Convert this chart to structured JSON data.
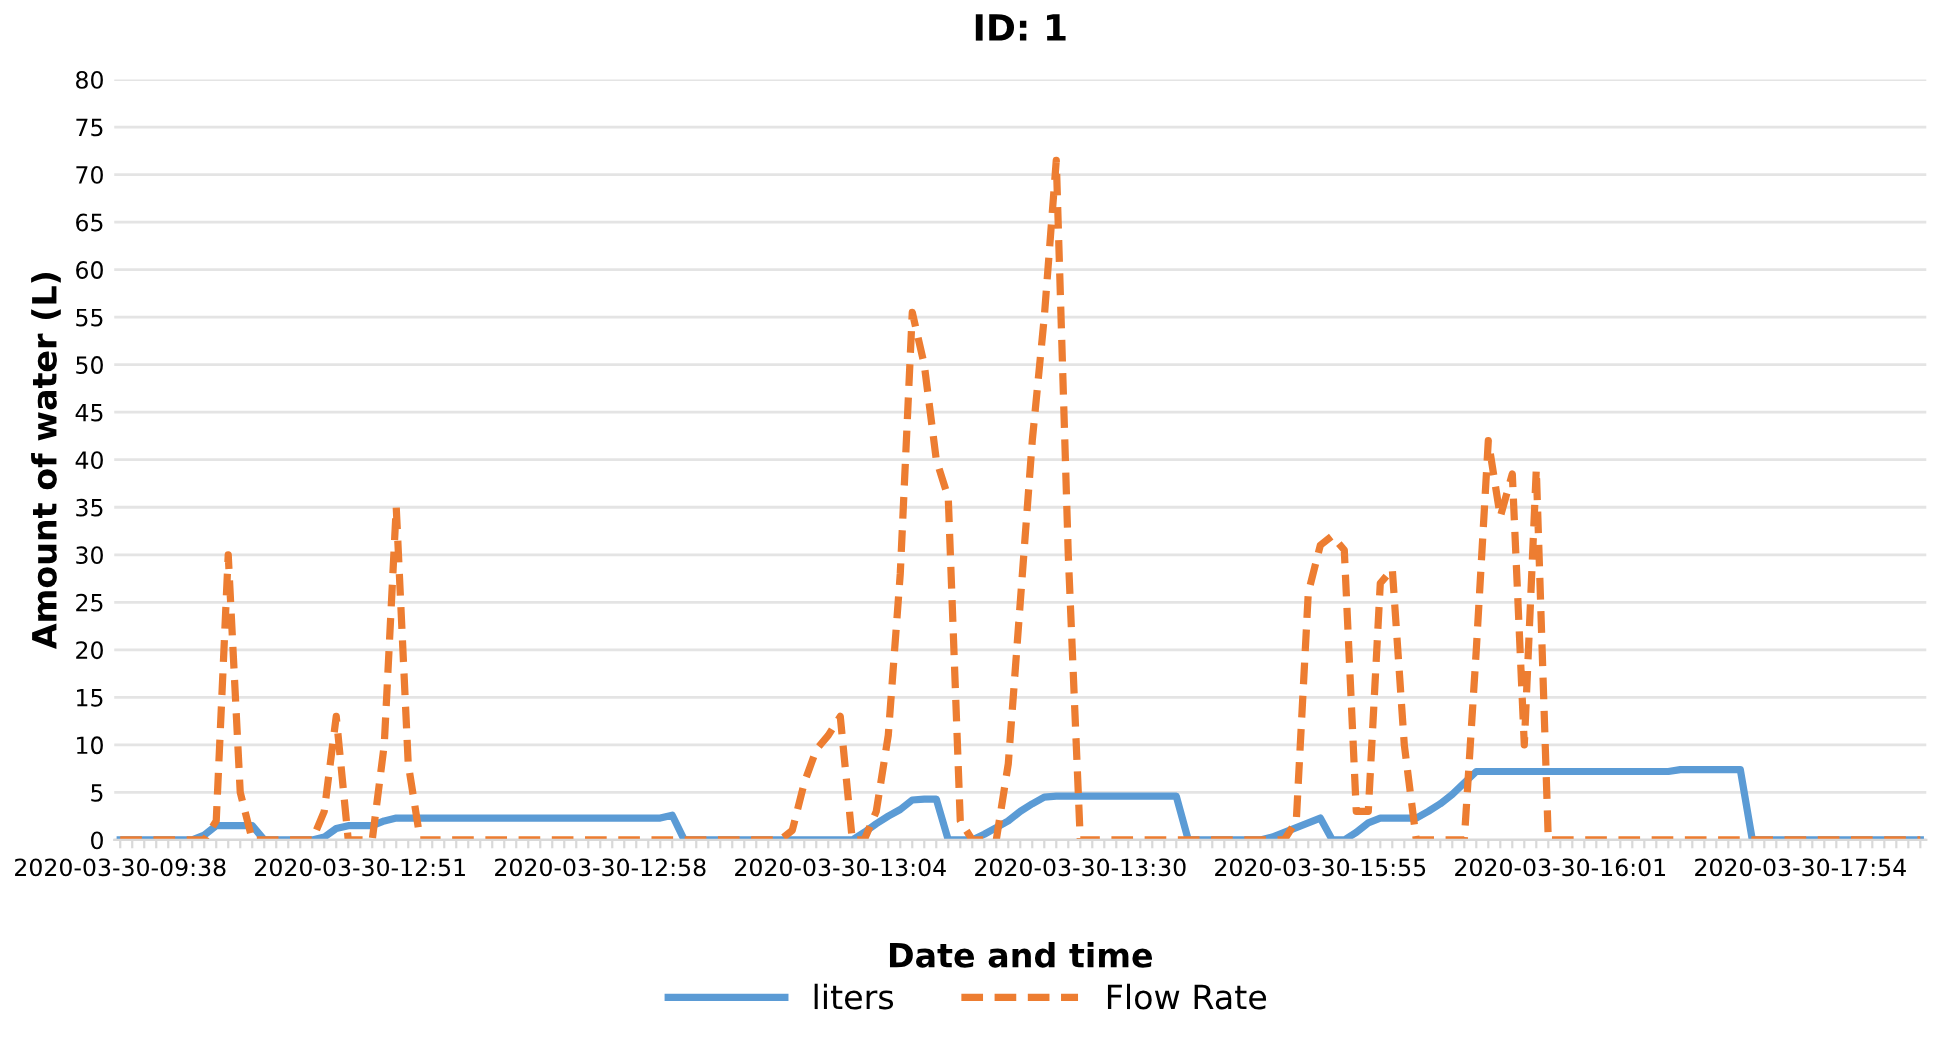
{
  "chart_data": {
    "type": "line",
    "title": "ID: 1",
    "xlabel": "Date and time",
    "ylabel": "Amount of water (L)",
    "categories": [
      "2020-03-30-09:38",
      null,
      null,
      null,
      null,
      null,
      null,
      null,
      null,
      null,
      null,
      null,
      null,
      null,
      null,
      null,
      null,
      null,
      null,
      null,
      "2020-03-30-12:51",
      null,
      null,
      null,
      null,
      null,
      null,
      null,
      null,
      null,
      null,
      null,
      null,
      null,
      null,
      null,
      null,
      null,
      null,
      null,
      "2020-03-30-12:58",
      null,
      null,
      null,
      null,
      null,
      null,
      null,
      null,
      null,
      null,
      null,
      null,
      null,
      null,
      null,
      null,
      null,
      null,
      null,
      "2020-03-30-13:04",
      null,
      null,
      null,
      null,
      null,
      null,
      null,
      null,
      null,
      null,
      null,
      null,
      null,
      null,
      null,
      null,
      null,
      null,
      null,
      "2020-03-30-13:30",
      null,
      null,
      null,
      null,
      null,
      null,
      null,
      null,
      null,
      null,
      null,
      null,
      null,
      null,
      null,
      null,
      null,
      null,
      null,
      "2020-03-30-15:55",
      null,
      null,
      null,
      null,
      null,
      null,
      null,
      null,
      null,
      null,
      null,
      null,
      null,
      null,
      null,
      null,
      null,
      null,
      null,
      "2020-03-30-16:01",
      null,
      null,
      null,
      null,
      null,
      null,
      null,
      null,
      null,
      null,
      null,
      null,
      null,
      null,
      null,
      null,
      null,
      null,
      null,
      "2020-03-30-17:54",
      null,
      null,
      null,
      null,
      null,
      null,
      null,
      null,
      null,
      null
    ],
    "series": [
      {
        "name": "liters",
        "color": "#5b9bd5",
        "line_style": "solid",
        "values": [
          0,
          0,
          0,
          0,
          0,
          0,
          0,
          0.5,
          1.5,
          1.5,
          1.5,
          1.5,
          0,
          0,
          0,
          0,
          0,
          0.3,
          1.2,
          1.5,
          1.5,
          1.5,
          2.0,
          2.3,
          2.3,
          2.3,
          2.3,
          2.3,
          2.3,
          2.3,
          2.3,
          2.3,
          2.3,
          2.3,
          2.3,
          2.3,
          2.3,
          2.3,
          2.3,
          2.3,
          2.3,
          2.3,
          2.3,
          2.3,
          2.3,
          2.3,
          2.6,
          0,
          0,
          0,
          0,
          0,
          0,
          0,
          0,
          0,
          0,
          0,
          0,
          0,
          0,
          0,
          0.8,
          1.7,
          2.5,
          3.2,
          4.2,
          4.3,
          4.3,
          0,
          0,
          0,
          0.6,
          1.3,
          2,
          3,
          3.8,
          4.5,
          4.6,
          4.6,
          4.6,
          4.6,
          4.6,
          4.6,
          4.6,
          4.6,
          4.6,
          4.6,
          4.6,
          0,
          0,
          0,
          0,
          0,
          0,
          0,
          0.3,
          0.8,
          1.3,
          1.8,
          2.3,
          0,
          0,
          0.8,
          1.8,
          2.3,
          2.3,
          2.3,
          2.3,
          3.0,
          3.8,
          4.8,
          6,
          7.2,
          7.2,
          7.2,
          7.2,
          7.2,
          7.2,
          7.2,
          7.2,
          7.2,
          7.2,
          7.2,
          7.2,
          7.2,
          7.2,
          7.2,
          7.2,
          7.2,
          7.4,
          7.4,
          7.4,
          7.4,
          7.4,
          7.4,
          0,
          0,
          0,
          0,
          0,
          0,
          0,
          0,
          0,
          0,
          0,
          0,
          0,
          0,
          0
        ]
      },
      {
        "name": "Flow Rate",
        "color": "#ed7d31",
        "line_style": "dashed",
        "values": [
          0,
          0,
          0,
          0,
          0,
          0,
          0,
          0,
          2,
          30,
          5,
          0,
          0,
          0,
          0,
          0,
          0,
          3,
          13,
          0,
          0,
          0,
          10,
          35,
          8,
          0,
          0,
          0,
          0,
          0,
          0,
          0,
          0,
          0,
          0,
          0,
          0,
          0,
          0,
          0,
          0,
          0,
          0,
          0,
          0,
          0,
          0,
          0,
          0,
          0,
          0,
          0,
          0,
          0,
          0,
          0,
          1,
          6,
          9.5,
          11,
          13,
          0,
          0,
          3,
          11,
          28,
          55.5,
          50,
          40,
          36,
          2,
          0,
          0,
          0,
          8,
          25,
          42,
          55,
          71.5,
          30,
          0,
          0,
          0,
          0,
          0,
          0,
          0,
          0,
          0,
          0,
          0,
          0,
          0,
          0,
          0,
          0,
          0,
          0,
          2,
          26,
          31,
          32,
          30.5,
          3,
          3,
          27,
          28.5,
          10,
          0,
          0,
          0,
          0,
          0,
          20,
          42,
          34,
          38.5,
          10,
          39,
          0,
          0,
          0,
          0,
          0,
          0,
          0,
          0,
          0,
          0,
          0,
          0,
          0,
          0,
          0,
          0,
          0,
          0,
          0,
          0,
          0,
          0,
          0,
          0,
          0,
          0,
          0,
          0,
          0,
          0,
          0,
          0
        ]
      }
    ],
    "ylim": [
      0,
      80
    ],
    "yticks": [
      0,
      5,
      10,
      15,
      20,
      25,
      30,
      35,
      40,
      45,
      50,
      55,
      60,
      65,
      70,
      75,
      80
    ],
    "grid": "y",
    "legend": "bottom"
  }
}
